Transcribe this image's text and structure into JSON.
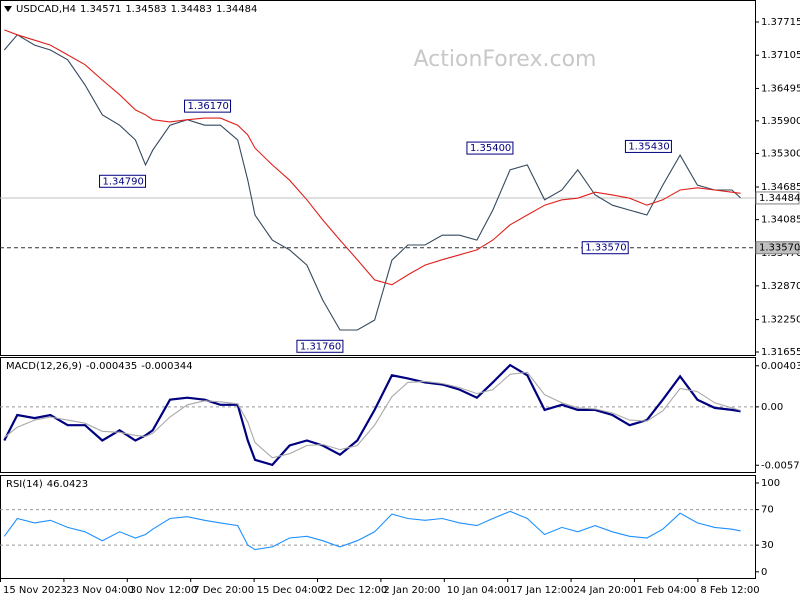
{
  "chart_data": [
    {
      "type": "line",
      "title": "USDCAD,H4",
      "ohlc": [
        1.34571,
        1.34583,
        1.34483,
        1.34484
      ],
      "watermark": "ActionForex.com",
      "x": [
        3,
        12,
        24,
        35,
        47,
        59,
        71,
        83,
        94,
        101,
        106,
        118,
        130,
        142,
        153,
        165,
        172,
        177,
        189,
        201,
        213,
        224,
        236,
        248,
        260,
        272,
        283,
        295,
        307,
        319,
        331,
        342,
        354,
        366,
        378,
        390,
        401,
        413,
        425,
        437,
        449,
        460,
        472,
        484,
        496,
        508,
        514
      ],
      "xlim": [
        0,
        524
      ],
      "ylim": [
        1.316,
        1.38119
      ],
      "yticks": [
        {
          "value": 1.37715,
          "label": "1.37715"
        },
        {
          "value": 1.37105,
          "label": "1.37105"
        },
        {
          "value": 1.36495,
          "label": "1.36495"
        },
        {
          "value": 1.359,
          "label": "1.35900"
        },
        {
          "value": 1.353,
          "label": "1.35300"
        },
        {
          "value": 1.34685,
          "label": "1.34685"
        },
        {
          "value": 1.34085,
          "label": "1.34085"
        },
        {
          "value": 1.3347,
          "label": "1.33470"
        },
        {
          "value": 1.3287,
          "label": "1.32870"
        },
        {
          "value": 1.3225,
          "label": "1.32250"
        },
        {
          "value": 1.31655,
          "label": "1.31655"
        }
      ],
      "series": [
        {
          "color": "#34495e",
          "values": [
            1.372,
            1.3748,
            1.3729,
            1.372,
            1.3702,
            1.3656,
            1.3601,
            1.3582,
            1.3555,
            1.3509,
            1.3536,
            1.3582,
            1.3592,
            1.3582,
            1.3582,
            1.3555,
            1.3481,
            1.3417,
            1.3371,
            1.3353,
            1.3325,
            1.3261,
            1.3206,
            1.3206,
            1.3224,
            1.3334,
            1.3362,
            1.3362,
            1.338,
            1.338,
            1.3371,
            1.3426,
            1.35,
            1.3509,
            1.3445,
            1.3463,
            1.35,
            1.3454,
            1.3435,
            1.3426,
            1.3417,
            1.3472,
            1.3527,
            1.3472,
            1.3463,
            1.3463,
            1.34484
          ]
        },
        {
          "color": "#e0201c",
          "values": [
            1.3757,
            1.3748,
            1.3738,
            1.3729,
            1.3711,
            1.3693,
            1.3665,
            1.3638,
            1.361,
            1.3601,
            1.3592,
            1.3588,
            1.3592,
            1.3595,
            1.3595,
            1.3582,
            1.3564,
            1.354,
            1.3509,
            1.3481,
            1.3445,
            1.3408,
            1.3371,
            1.3335,
            1.3298,
            1.3289,
            1.3307,
            1.3325,
            1.3335,
            1.3344,
            1.3353,
            1.3371,
            1.3399,
            1.3417,
            1.3435,
            1.3445,
            1.3448,
            1.3459,
            1.3454,
            1.3448,
            1.3435,
            1.3445,
            1.3463,
            1.3467,
            1.3463,
            1.3459,
            1.3457
          ]
        }
      ],
      "price_lines": [
        {
          "value": 1.34484,
          "style": "solid"
        },
        {
          "value": 1.3357,
          "label": "1.33570",
          "style": "dashed"
        }
      ],
      "annotations": [
        {
          "x": 160,
          "value": 1.3617,
          "label": "1.36170"
        },
        {
          "x": 101,
          "value": 1.3479,
          "label": "1.34790"
        },
        {
          "x": 356,
          "value": 1.354,
          "label": "1.35400"
        },
        {
          "x": 466,
          "value": 1.3543,
          "label": "1.35430"
        },
        {
          "x": 436,
          "value": 1.3357,
          "label": "1.33570"
        },
        {
          "x": 238,
          "value": 1.3176,
          "label": "1.31760"
        }
      ]
    },
    {
      "type": "line",
      "title": "MACD(12,26,9)",
      "current": [
        -0.000435,
        -0.000344
      ],
      "x": [
        3,
        12,
        24,
        35,
        47,
        59,
        71,
        83,
        94,
        101,
        106,
        118,
        130,
        142,
        153,
        165,
        172,
        177,
        189,
        201,
        213,
        224,
        236,
        248,
        260,
        272,
        283,
        295,
        307,
        319,
        331,
        342,
        354,
        366,
        378,
        390,
        401,
        413,
        425,
        437,
        449,
        460,
        472,
        484,
        496,
        508,
        514
      ],
      "xlim": [
        0,
        524
      ],
      "ylim": [
        -0.0064,
        0.0049
      ],
      "yticks": [
        0.004038,
        {
          "value": 0,
          "label": "0.00"
        },
        -0.005737
      ],
      "levels": [
        0
      ],
      "series": [
        {
          "color": "#000080",
          "values": [
            -0.0033,
            -0.0008,
            -0.0011,
            -0.0008,
            -0.0018,
            -0.0018,
            -0.0033,
            -0.0023,
            -0.0033,
            -0.0028,
            -0.0023,
            0.0007,
            0.0009,
            0.0007,
            0.0002,
            0.0002,
            -0.0033,
            -0.0052,
            -0.0057,
            -0.0038,
            -0.0033,
            -0.0038,
            -0.0047,
            -0.0033,
            -0.0003,
            0.0031,
            0.0028,
            0.0024,
            0.0022,
            0.0017,
            0.0009,
            0.0024,
            0.0041,
            0.0031,
            -0.0003,
            0.0002,
            -0.0003,
            -0.0003,
            -0.0008,
            -0.0018,
            -0.0013,
            0.0007,
            0.003,
            0.0007,
            -0.0001,
            -0.0003,
            -0.000435
          ]
        },
        {
          "color": "#a9a9a9",
          "values": [
            -0.003,
            -0.002,
            -0.0013,
            -0.001,
            -0.0013,
            -0.0016,
            -0.0024,
            -0.0025,
            -0.0028,
            -0.0029,
            -0.0026,
            -0.001,
            0.0002,
            0.0006,
            0.0005,
            0.0003,
            -0.0015,
            -0.0035,
            -0.005,
            -0.0046,
            -0.0038,
            -0.0037,
            -0.0042,
            -0.0038,
            -0.0018,
            0.001,
            0.0024,
            0.0025,
            0.0023,
            0.0019,
            0.0013,
            0.0017,
            0.0032,
            0.0034,
            0.0012,
            0.0004,
            -0.0001,
            -0.0002,
            -0.0006,
            -0.0013,
            -0.0014,
            -0.0004,
            0.0018,
            0.0015,
            0.0004,
            -0.0001,
            -0.000344
          ]
        }
      ]
    },
    {
      "type": "line",
      "title": "RSI(14)",
      "current": 46.0423,
      "x": [
        3,
        12,
        24,
        35,
        47,
        59,
        71,
        83,
        94,
        101,
        106,
        118,
        130,
        142,
        153,
        165,
        172,
        177,
        189,
        201,
        213,
        224,
        236,
        248,
        260,
        272,
        283,
        295,
        307,
        319,
        331,
        342,
        354,
        366,
        378,
        390,
        401,
        413,
        425,
        437,
        449,
        460,
        472,
        484,
        496,
        508,
        514
      ],
      "xlim": [
        0,
        524
      ],
      "ylim": [
        -7,
        109
      ],
      "yticks": [
        100,
        70,
        30,
        0
      ],
      "levels": [
        70,
        30
      ],
      "series": [
        {
          "color": "#1e90ff",
          "values": [
            40,
            60,
            55,
            58,
            50,
            45,
            35,
            45,
            38,
            42,
            48,
            60,
            62,
            58,
            55,
            52,
            30,
            25,
            28,
            38,
            40,
            35,
            28,
            35,
            45,
            65,
            60,
            58,
            60,
            55,
            52,
            60,
            68,
            60,
            42,
            50,
            45,
            52,
            45,
            40,
            38,
            48,
            66,
            55,
            50,
            48,
            46.0423
          ]
        }
      ],
      "xticks": [
        {
          "value": 0,
          "label": "15 Nov 2023"
        },
        {
          "value": 44,
          "label": "23 Nov 04:00"
        },
        {
          "value": 88,
          "label": "30 Nov 12:00"
        },
        {
          "value": 132,
          "label": "7 Dec 20:00"
        },
        {
          "value": 176,
          "label": "15 Dec 04:00"
        },
        {
          "value": 220,
          "label": "22 Dec 12:00"
        },
        {
          "value": 264,
          "label": "2 Jan 20:00"
        },
        {
          "value": 308,
          "label": "10 Jan 04:00"
        },
        {
          "value": 352,
          "label": "17 Jan 12:00"
        },
        {
          "value": 396,
          "label": "24 Jan 20:00"
        },
        {
          "value": 440,
          "label": "1 Feb 04:00"
        },
        {
          "value": 484,
          "label": "8 Feb 12:00"
        }
      ]
    }
  ]
}
